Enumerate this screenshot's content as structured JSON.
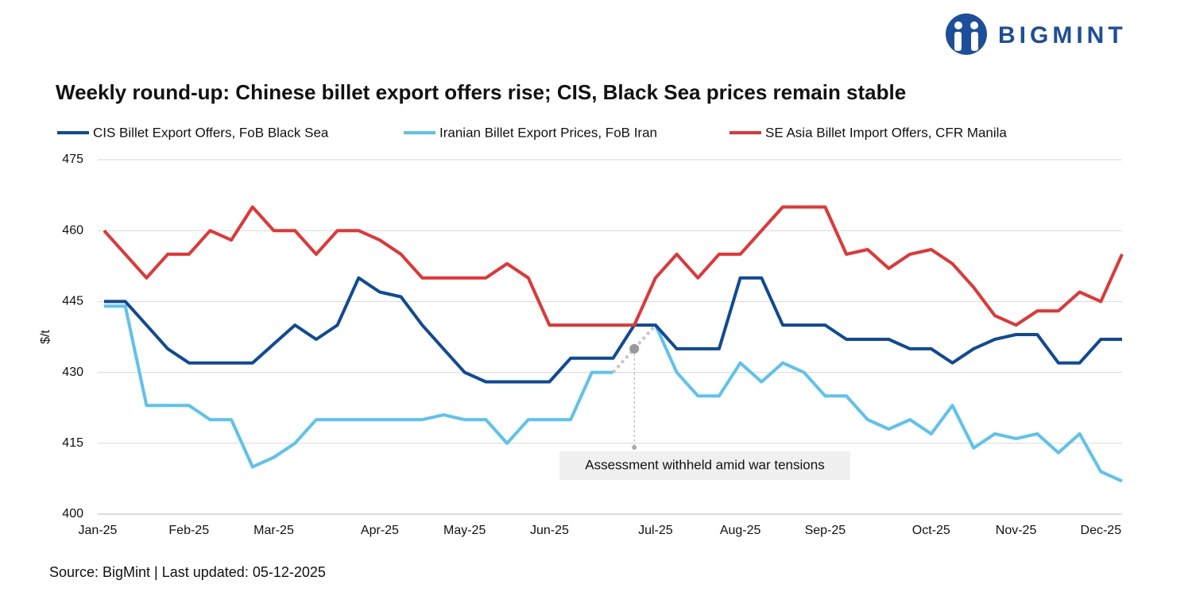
{
  "brand": "BIGMINT",
  "source": "Source: BigMint | Last updated: 05-12-2025",
  "chart_data": {
    "type": "line",
    "title": "Weekly round-up: Chinese billet export offers rise; CIS, Black Sea prices remain stable",
    "y_label": "$/t",
    "annotation": "Assessment withheld amid war tensions",
    "categories": [
      "Jan-25",
      null,
      null,
      null,
      "Feb-25",
      null,
      null,
      null,
      "Mar-25",
      null,
      null,
      null,
      null,
      "Apr-25",
      null,
      null,
      null,
      "May-25",
      null,
      null,
      null,
      "Jun-25",
      null,
      null,
      null,
      null,
      "Jul-25",
      null,
      null,
      null,
      "Aug-25",
      null,
      null,
      null,
      "Sep-25",
      null,
      null,
      null,
      null,
      "Oct-25",
      null,
      null,
      null,
      "Nov-25",
      null,
      null,
      null,
      "Dec-25",
      null
    ],
    "series": [
      {
        "name": "CIS Billet Export Offers, FoB Black Sea",
        "color": "#0d4a9a",
        "values": [
          445,
          445,
          440,
          435,
          432,
          432,
          432,
          432,
          436,
          440,
          437,
          440,
          450,
          447,
          446,
          440,
          435,
          430,
          428,
          428,
          428,
          428,
          433,
          433,
          433,
          440,
          440,
          435,
          435,
          435,
          450,
          450,
          440,
          440,
          440,
          437,
          437,
          437,
          435,
          435,
          432,
          435,
          437,
          438,
          438,
          432,
          432,
          437,
          437
        ]
      },
      {
        "name": "Iranian Billet Export Prices, FoB Iran",
        "color": "#5bc3f0",
        "values": [
          444,
          444,
          423,
          423,
          423,
          420,
          420,
          410,
          412,
          415,
          420,
          420,
          420,
          420,
          420,
          420,
          421,
          420,
          420,
          415,
          420,
          420,
          420,
          430,
          430,
          null,
          440,
          430,
          425,
          425,
          432,
          428,
          432,
          430,
          425,
          425,
          420,
          418,
          420,
          417,
          423,
          414,
          417,
          416,
          417,
          413,
          417,
          409,
          407
        ]
      },
      {
        "name": "SE Asia Billet Import Offers, CFR Manila",
        "color": "#e63434",
        "values": [
          460,
          455,
          450,
          455,
          455,
          460,
          458,
          465,
          460,
          460,
          455,
          460,
          460,
          458,
          455,
          450,
          450,
          450,
          450,
          453,
          450,
          440,
          440,
          440,
          440,
          440,
          450,
          455,
          450,
          455,
          455,
          460,
          465,
          465,
          465,
          455,
          456,
          452,
          455,
          456,
          453,
          448,
          442,
          440,
          443,
          443,
          447,
          445,
          455
        ]
      }
    ],
    "ylim": [
      400,
      475
    ],
    "yticks": [
      400,
      415,
      430,
      445,
      460,
      475
    ],
    "grid": true
  }
}
